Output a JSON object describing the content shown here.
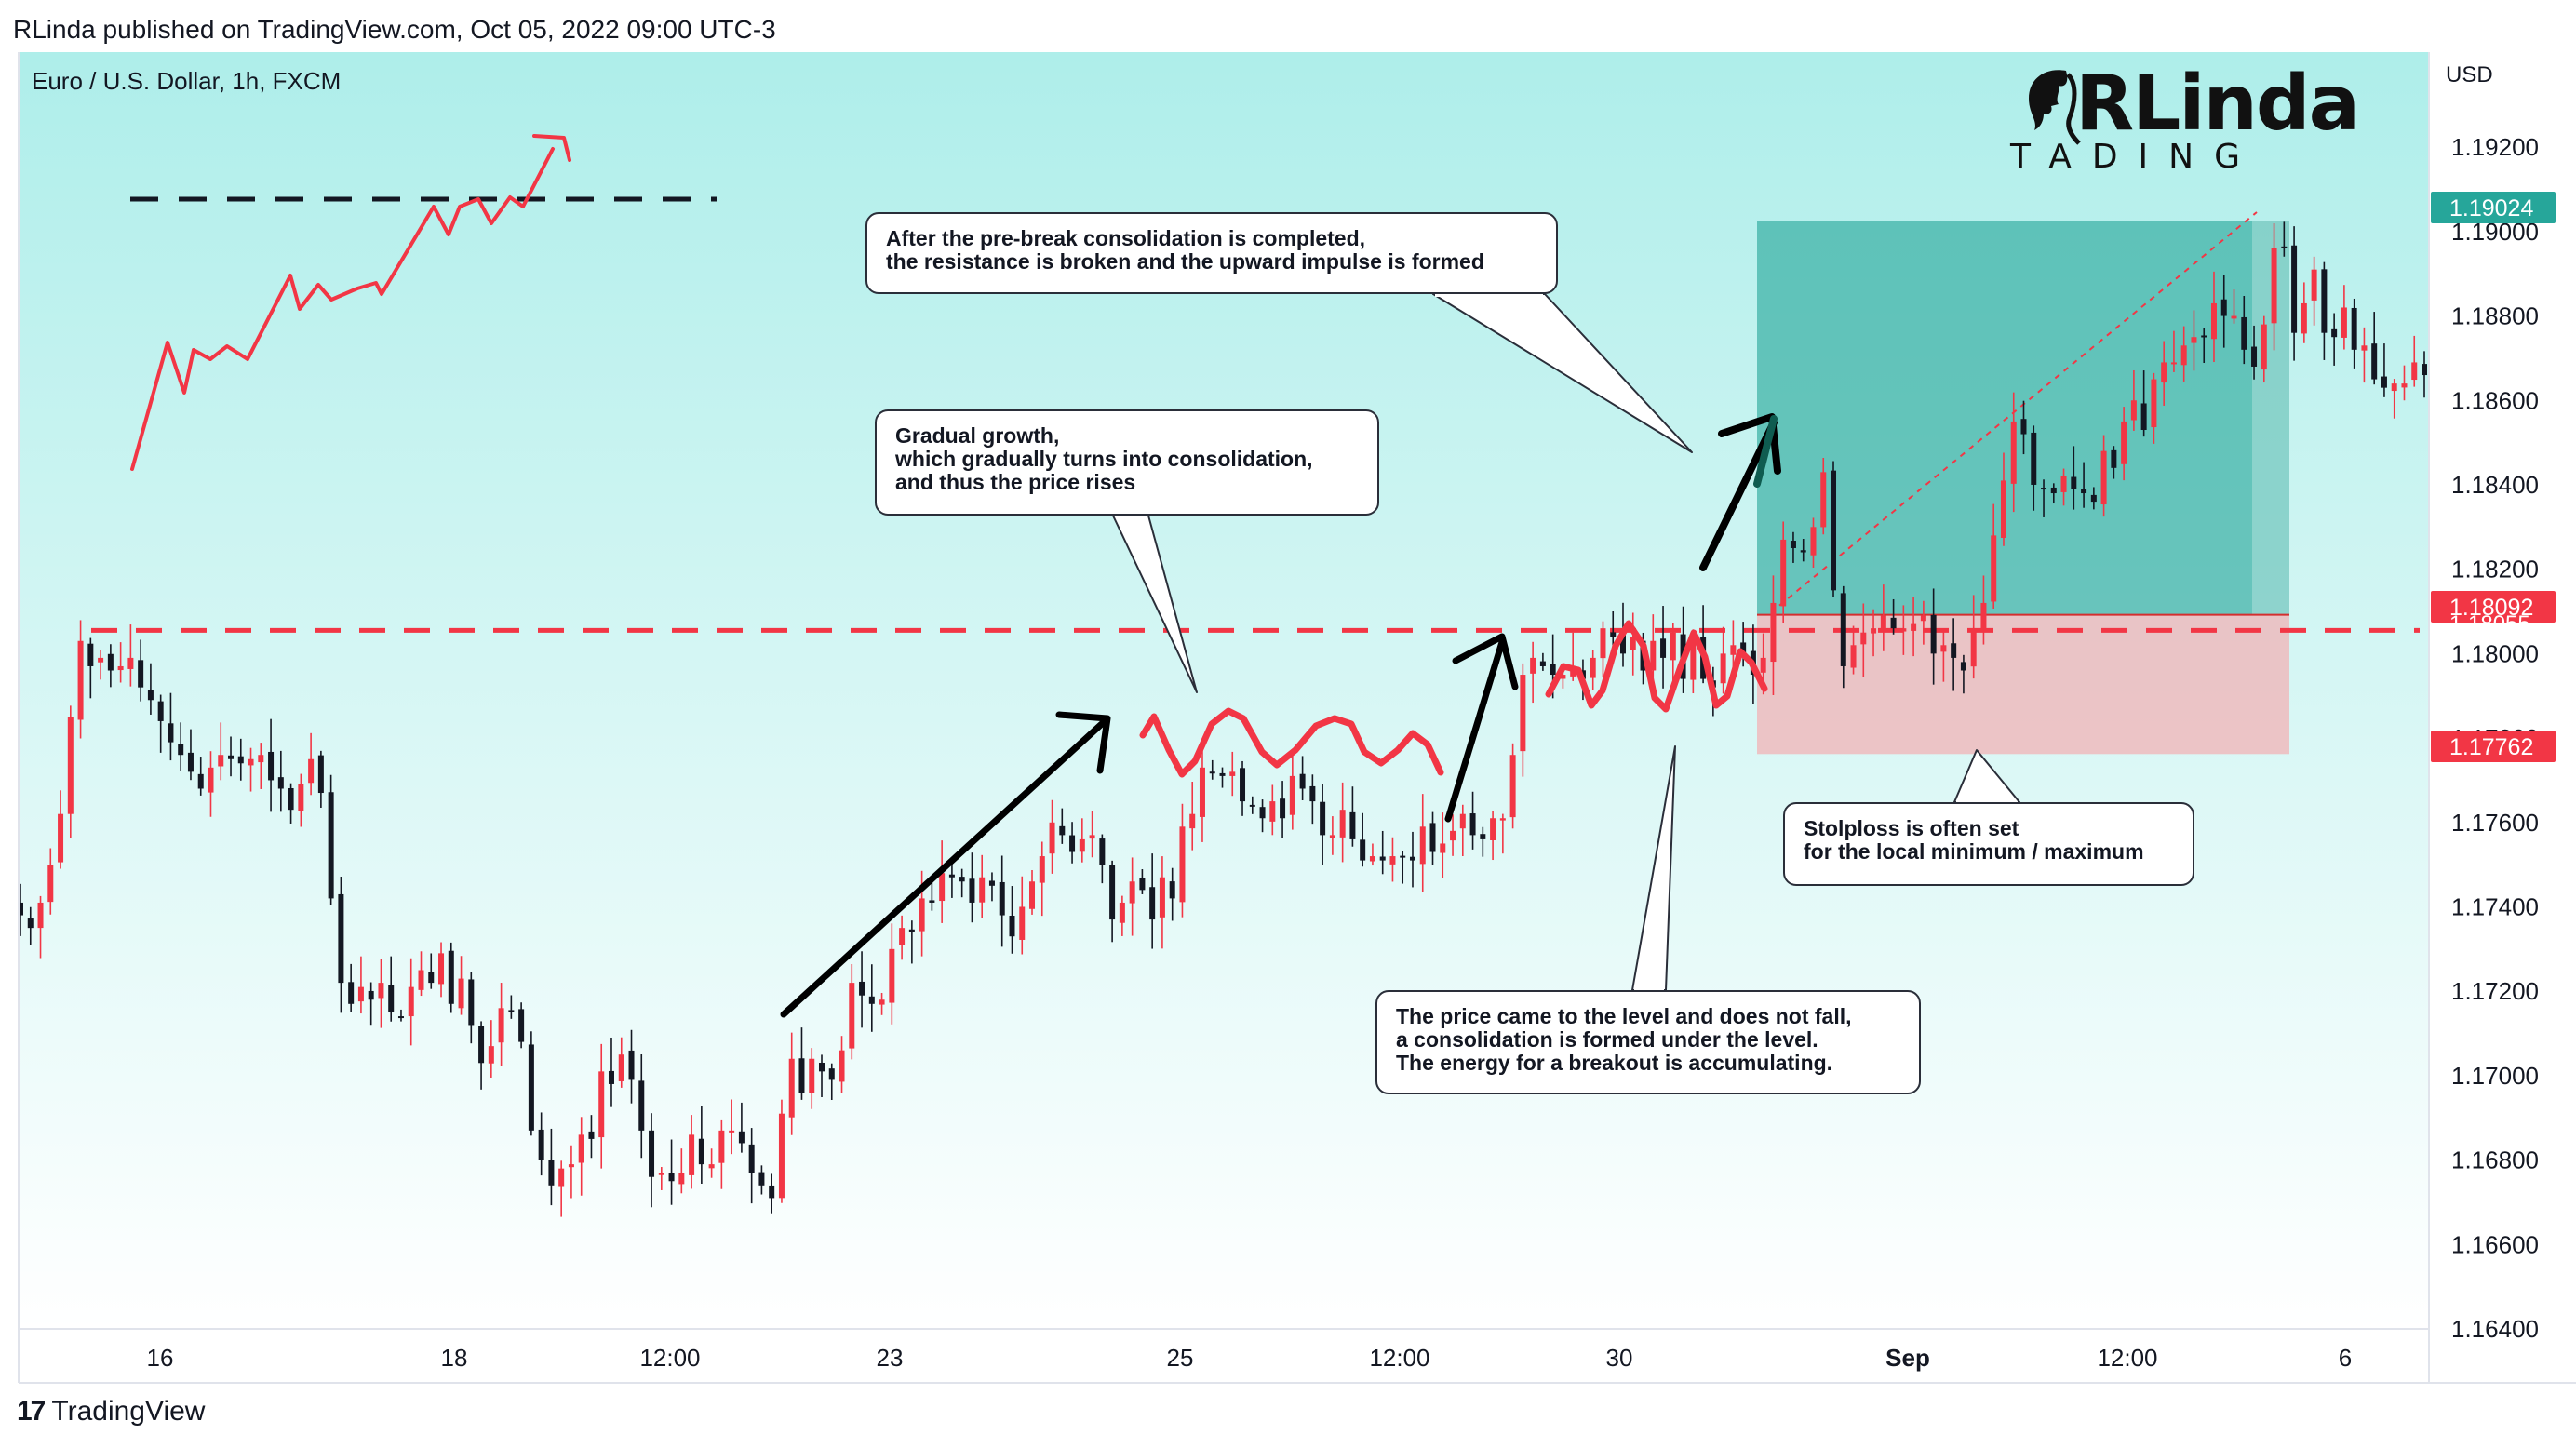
{
  "header": "RLinda published on TradingView.com, Oct 05, 2022 09:00 UTC-3",
  "symbol": "Euro / U.S. Dollar, 1h, FXCM",
  "currency": "USD",
  "logo": {
    "main": "RLinda",
    "sub": "TADING",
    "leading_letter": "R"
  },
  "footer": {
    "brand": "TradingView",
    "logo_mark": "17"
  },
  "callouts": [
    {
      "id": "impulse",
      "text": "After the pre-break consolidation is completed,\nthe resistance is broken and the upward impulse is formed"
    },
    {
      "id": "growth",
      "text": "Gradual growth,\nwhich gradually turns into consolidation,\nand thus the price rises"
    },
    {
      "id": "level",
      "text": "The price came to the level and does not fall,\na consolidation is formed under the level.\nThe energy for a breakout is accumulating."
    },
    {
      "id": "stop",
      "text": "Stolploss is often set\nfor the local minimum / maximum"
    }
  ],
  "colors": {
    "bg_top": "#aeeeea",
    "bg_bottom": "#ffffff",
    "up_candle": "#f23645",
    "down_candle": "#131722",
    "resistance_line": "#f23645",
    "target_zone": "#26a69a",
    "stop_zone": "#f7a5a9",
    "price_tag_green": "#26a69a",
    "price_tag_red": "#f23645"
  },
  "chart_data": {
    "type": "candlestick",
    "symbol": "EURUSD",
    "timeframe": "1h",
    "ylim": [
      1.164,
      1.1924
    ],
    "y_ticks": [
      "1.19200",
      "1.19000",
      "1.18800",
      "1.18600",
      "1.18400",
      "1.18200",
      "1.18000",
      "1.17800",
      "1.17600",
      "1.17400",
      "1.17200",
      "1.17000",
      "1.16800",
      "1.16600",
      "1.16400"
    ],
    "x_ticks": [
      {
        "label": "16",
        "bold": false
      },
      {
        "label": "18",
        "bold": false
      },
      {
        "label": "12:00",
        "bold": false
      },
      {
        "label": "23",
        "bold": false
      },
      {
        "label": "25",
        "bold": false
      },
      {
        "label": "12:00",
        "bold": false
      },
      {
        "label": "30",
        "bold": false
      },
      {
        "label": "Sep",
        "bold": true
      },
      {
        "label": "12:00",
        "bold": false
      },
      {
        "label": "6",
        "bold": false
      }
    ],
    "price_labels": [
      {
        "value": "1.19024",
        "color": "#26a69a"
      },
      {
        "value": "1.18092",
        "color": "#f23645"
      },
      {
        "value": "1.18055",
        "color": "#f23645"
      },
      {
        "value": "1.17762",
        "color": "#f23645"
      }
    ],
    "resistance_level": 1.18055,
    "position": {
      "entry": 1.18092,
      "target": 1.19024,
      "stop": 1.17762
    },
    "candles_close": [
      1.1738,
      1.1735,
      1.1741,
      1.175,
      1.1762,
      1.1785,
      1.1803,
      1.1797,
      1.1799,
      1.1796,
      1.1797,
      1.1799,
      1.1792,
      1.1789,
      1.1784,
      1.1779,
      1.1776,
      1.1772,
      1.1768,
      1.1773,
      1.1776,
      1.1775,
      1.1774,
      1.1775,
      1.1776,
      1.177,
      1.1768,
      1.1763,
      1.1769,
      1.1775,
      1.1767,
      1.1742,
      1.1722,
      1.1717,
      1.1721,
      1.1718,
      1.1722,
      1.1715,
      1.1714,
      1.1721,
      1.1725,
      1.1722,
      1.1729,
      1.1717,
      1.1723,
      1.1712,
      1.1703,
      1.1707,
      1.1716,
      1.1715,
      1.1708,
      1.1687,
      1.168,
      1.1674,
      1.1678,
      1.1679,
      1.1686,
      1.1685,
      1.1701,
      1.1698,
      1.1705,
      1.1699,
      1.1687,
      1.1676,
      1.1677,
      1.1675,
      1.1677,
      1.1686,
      1.1679,
      1.1679,
      1.1687,
      1.1687,
      1.1684,
      1.1677,
      1.1674,
      1.1671,
      1.1691,
      1.1704,
      1.1696,
      1.1704,
      1.1701,
      1.1699,
      1.1706,
      1.1722,
      1.1719,
      1.1717,
      1.1718,
      1.173,
      1.1735,
      1.1734,
      1.1742,
      1.1741,
      1.1748,
      1.1747,
      1.1746,
      1.1741,
      1.1747,
      1.1745,
      1.1738,
      1.1733,
      1.174,
      1.1746,
      1.1752,
      1.176,
      1.1757,
      1.1753,
      1.1756,
      1.1757,
      1.175,
      1.1737,
      1.1741,
      1.1746,
      1.1744,
      1.1737,
      1.1747,
      1.1742,
      1.1759,
      1.1762,
      1.1773,
      1.1772,
      1.1771,
      1.1772,
      1.1765,
      1.1764,
      1.1761,
      1.1765,
      1.1761,
      1.1771,
      1.1768,
      1.1765,
      1.1757,
      1.1757,
      1.1763,
      1.1756,
      1.1751,
      1.1752,
      1.1751,
      1.1752,
      1.1752,
      1.1751,
      1.1759,
      1.1753,
      1.1755,
      1.1758,
      1.1762,
      1.1757,
      1.1756,
      1.1761,
      1.1761,
      1.1776,
      1.1795,
      1.1799,
      1.1797,
      1.1795,
      1.1795,
      1.1797,
      1.1794,
      1.1799,
      1.1806,
      1.1804,
      1.18,
      1.1804,
      1.1796,
      1.1803,
      1.1799,
      1.1805,
      1.1794,
      1.1803,
      1.1794,
      1.1792,
      1.18,
      1.1802,
      1.18,
      1.1795,
      1.1799,
      1.1812,
      1.1827,
      1.1825,
      1.1824,
      1.183,
      1.1843,
      1.1815,
      1.1797,
      1.1802,
      1.1805,
      1.1806,
      1.1809,
      1.1806,
      1.1806,
      1.1807,
      1.1809,
      1.18,
      1.1802,
      1.1799,
      1.1796,
      1.1806,
      1.1812,
      1.1828,
      1.1841,
      1.1855,
      1.1852,
      1.184,
      1.1839,
      1.1838,
      1.1842,
      1.1839,
      1.1838,
      1.1836,
      1.1848,
      1.1844,
      1.1855,
      1.186,
      1.1853,
      1.1865,
      1.1869,
      1.1869,
      1.1873,
      1.1875,
      1.1875,
      1.1883,
      1.188,
      1.188,
      1.1872,
      1.1868,
      1.1878,
      1.1896,
      1.1896,
      1.1876,
      1.1883,
      1.1891,
      1.1876,
      1.1875,
      1.1882,
      1.1872,
      1.1873,
      1.1865,
      1.1863,
      1.1864,
      1.1864,
      1.1869,
      1.1866
    ],
    "annotations": [
      "resistance-line",
      "long-position-box",
      "schematic-breakout-sketch",
      "trend-arrows",
      "consolidation-waves"
    ]
  }
}
